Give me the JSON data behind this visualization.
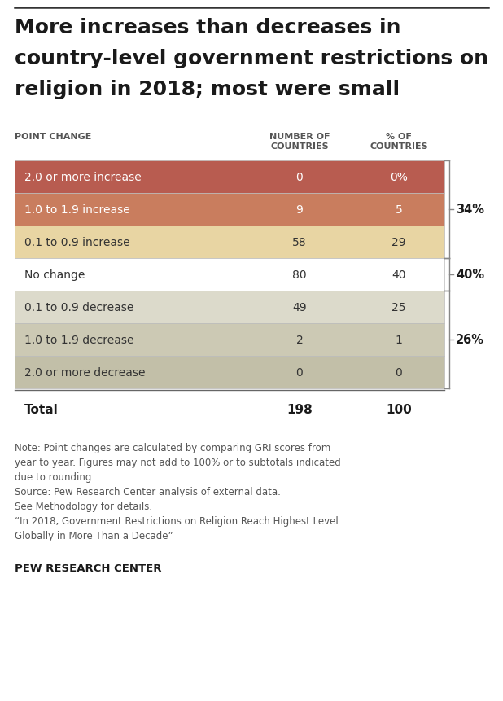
{
  "title_lines": [
    "More increases than decreases in",
    "country-level government restrictions on",
    "religion in 2018; most were small"
  ],
  "col_header_1": "POINT CHANGE",
  "col_header_2": "NUMBER OF\nCOUNTRIES",
  "col_header_3": "% OF\nCOUNTRIES",
  "rows": [
    {
      "label": "2.0 or more increase",
      "num": "0",
      "pct": "0%",
      "bg_color": "#b85c50",
      "text_color": "#ffffff"
    },
    {
      "label": "1.0 to 1.9 increase",
      "num": "9",
      "pct": "5",
      "bg_color": "#c97d5e",
      "text_color": "#ffffff"
    },
    {
      "label": "0.1 to 0.9 increase",
      "num": "58",
      "pct": "29",
      "bg_color": "#e8d5a3",
      "text_color": "#333333"
    },
    {
      "label": "No change",
      "num": "80",
      "pct": "40",
      "bg_color": "#ffffff",
      "text_color": "#333333"
    },
    {
      "label": "0.1 to 0.9 decrease",
      "num": "49",
      "pct": "25",
      "bg_color": "#dcdacb",
      "text_color": "#333333"
    },
    {
      "label": "1.0 to 1.9 decrease",
      "num": "2",
      "pct": "1",
      "bg_color": "#ccc9b4",
      "text_color": "#333333"
    },
    {
      "label": "2.0 or more decrease",
      "num": "0",
      "pct": "0",
      "bg_color": "#c2bfa8",
      "text_color": "#333333"
    }
  ],
  "total_label": "Total",
  "total_num": "198",
  "total_pct": "100",
  "bracket_info": [
    {
      "start": 0,
      "end": 2,
      "label": "34%"
    },
    {
      "start": 3,
      "end": 3,
      "label": "40%"
    },
    {
      "start": 4,
      "end": 6,
      "label": "26%"
    }
  ],
  "note_text": "Note: Point changes are calculated by comparing GRI scores from\nyear to year. Figures may not add to 100% or to subtotals indicated\ndue to rounding.\nSource: Pew Research Center analysis of external data.\nSee Methodology for details.\n“In 2018, Government Restrictions on Religion Reach Highest Level\nGlobally in More Than a Decade”",
  "footer_text": "PEW RESEARCH CENTER",
  "bg_color": "#ffffff",
  "top_line_color": "#333333",
  "separator_color": "#666666",
  "bracket_color": "#888888"
}
